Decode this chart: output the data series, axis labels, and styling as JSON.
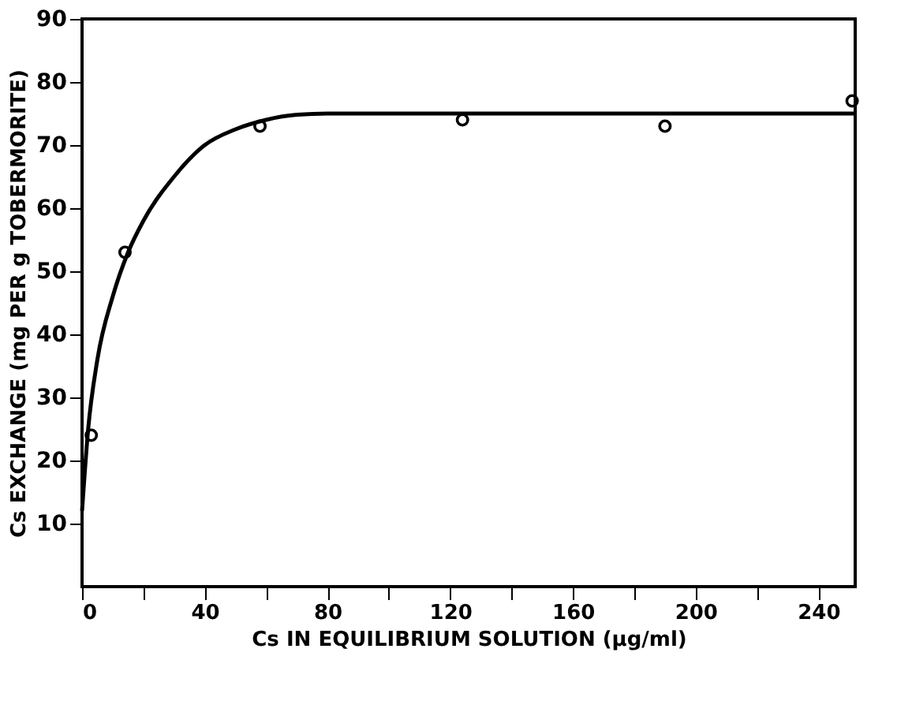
{
  "chart_data": {
    "type": "scatter",
    "xlabel": "Cs IN EQUILIBRIUM SOLUTION (µg/ml)",
    "ylabel": "Cs EXCHANGE (mg PER g TOBERMORITE)",
    "xlim": [
      0,
      252
    ],
    "ylim": [
      0,
      90
    ],
    "xticks": [
      0,
      {
        "value": 20,
        "label": null
      },
      40,
      {
        "value": 60,
        "label": null
      },
      80,
      {
        "value": 100,
        "label": null
      },
      120,
      {
        "value": 140,
        "label": null
      },
      160,
      {
        "value": 180,
        "label": null
      },
      200,
      {
        "value": 220,
        "label": null
      },
      240
    ],
    "yticks": [
      10,
      20,
      30,
      40,
      50,
      60,
      70,
      80,
      90
    ],
    "grid": false,
    "series": [
      {
        "type": "line",
        "color": "#000000",
        "line_style": "solid",
        "marker": "none",
        "x": [
          0,
          2,
          5,
          10,
          15,
          20,
          30,
          40,
          50,
          60,
          70,
          80,
          120,
          180,
          252
        ],
        "values": [
          12,
          25,
          36,
          46,
          53,
          58,
          65,
          70,
          72.5,
          74,
          74.8,
          75,
          75,
          75,
          75
        ]
      },
      {
        "color": "#000000",
        "marker": "circle",
        "x": [
          3,
          14,
          58,
          124,
          190,
          251
        ],
        "values": [
          24,
          53,
          73,
          74,
          73,
          77
        ]
      }
    ]
  }
}
